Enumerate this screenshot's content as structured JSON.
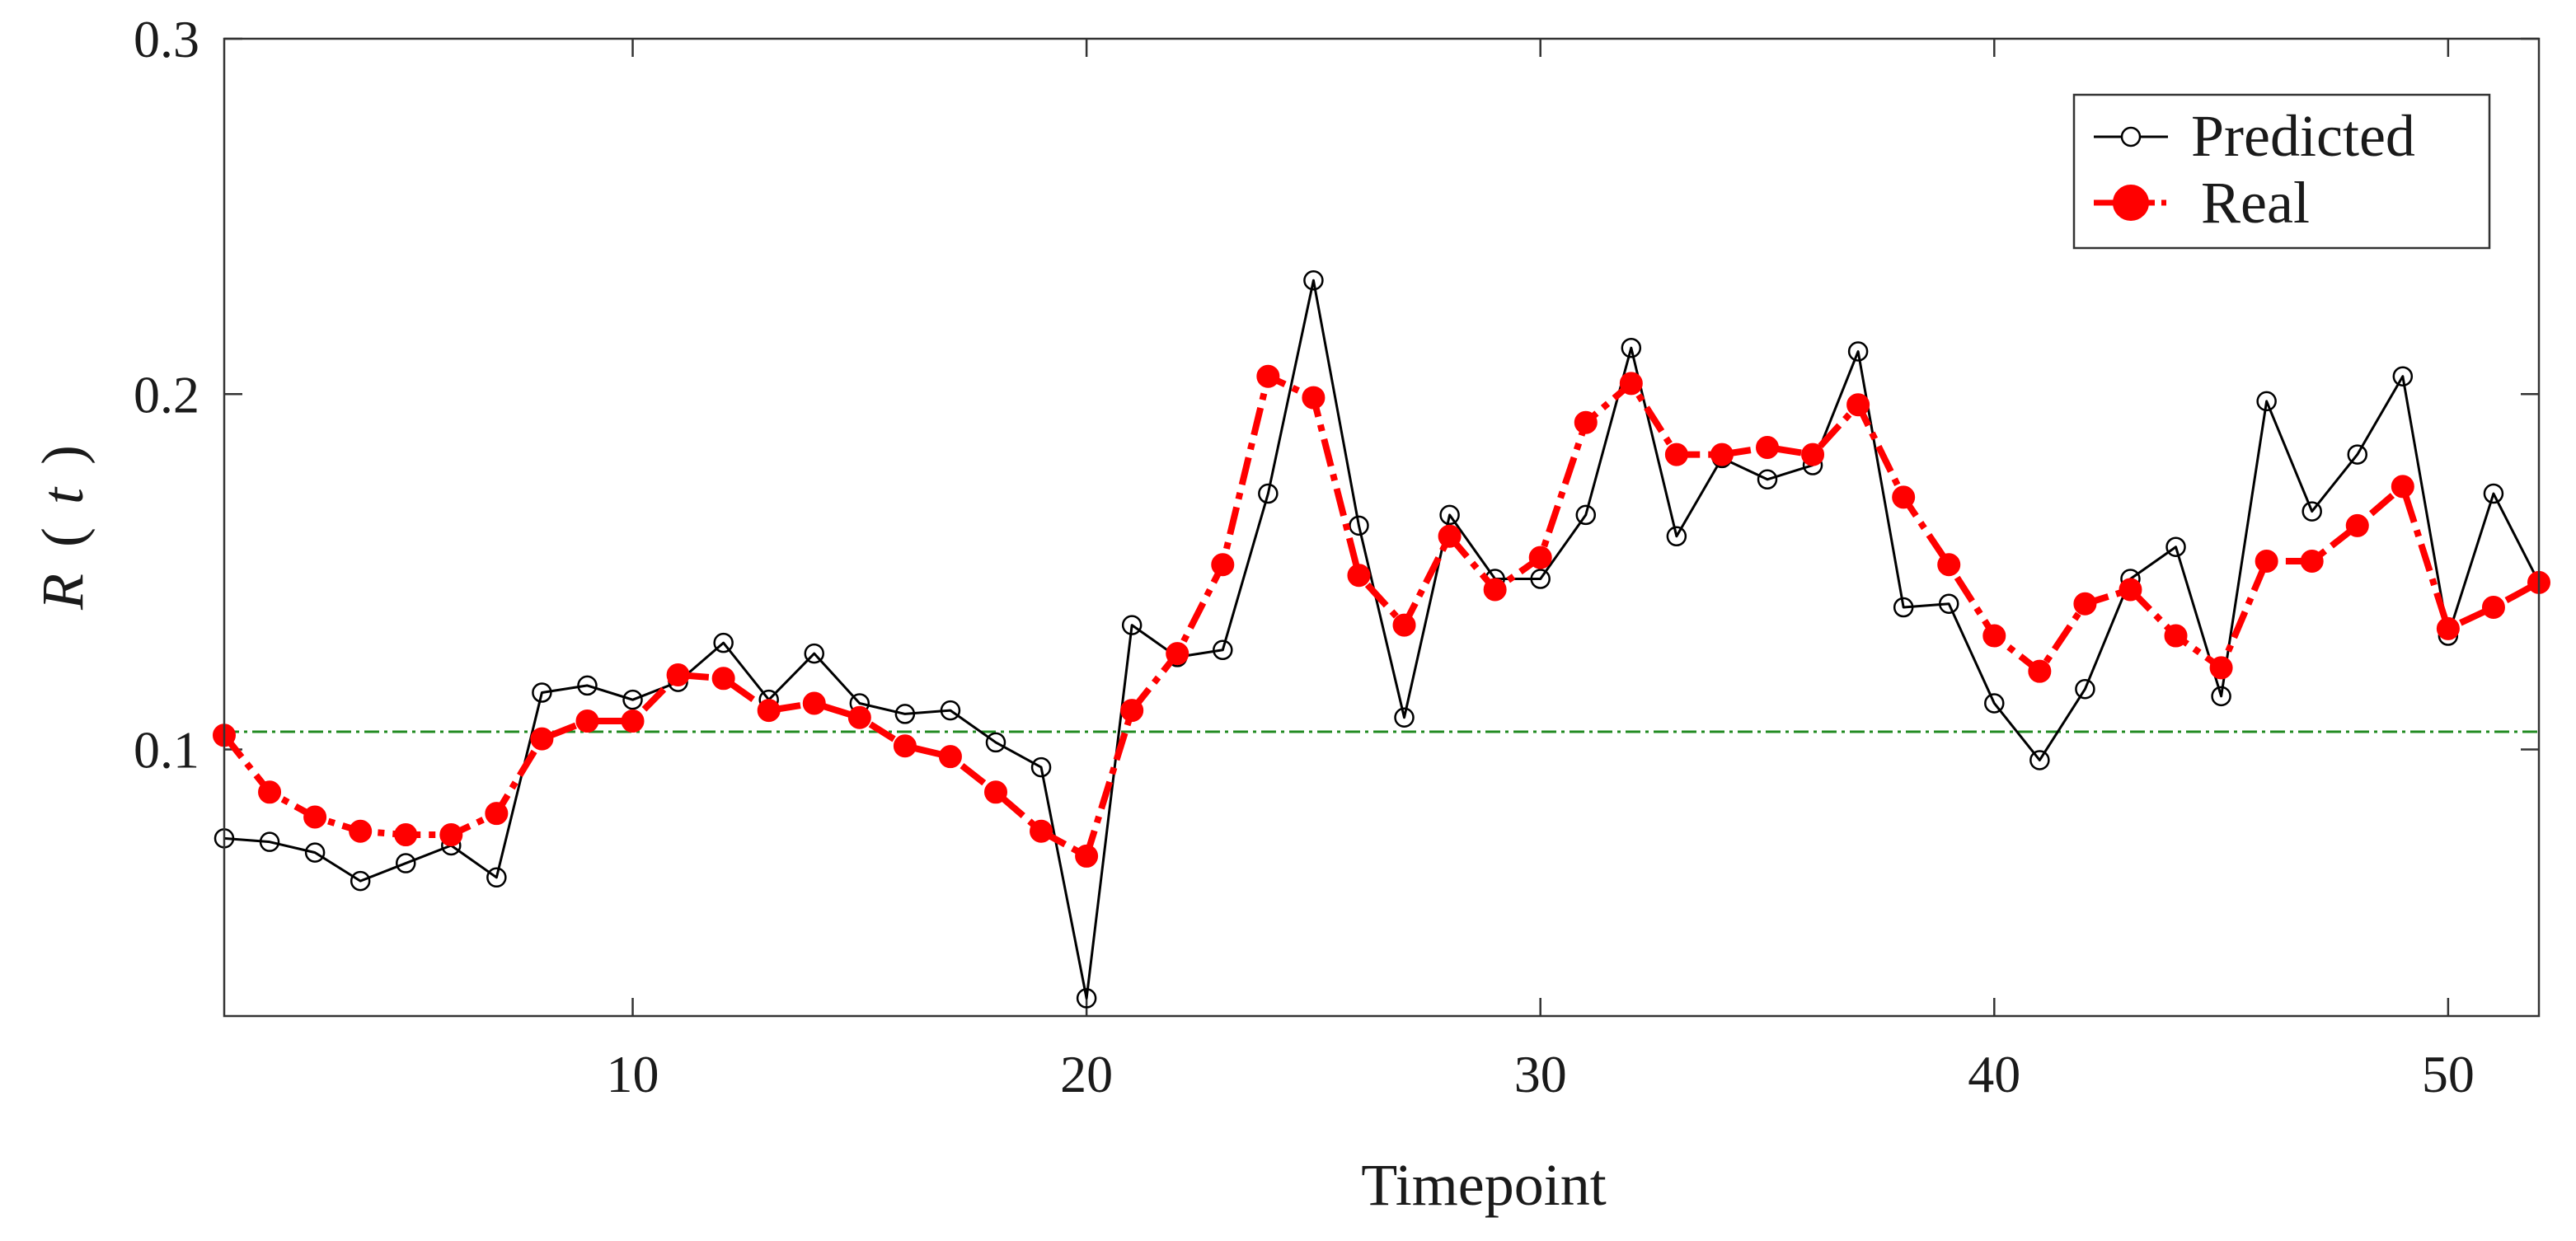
{
  "chart_data": {
    "type": "line",
    "xlabel": "Timepoint",
    "ylabel_main": "R",
    "ylabel_open": "(",
    "ylabel_var": "t",
    "ylabel_close": ")",
    "xlim": [
      1,
      52
    ],
    "ylim": [
      0.025,
      0.3
    ],
    "xticks": [
      10,
      20,
      30,
      40,
      50
    ],
    "yticks": [
      0.1,
      0.2,
      0.3
    ],
    "grid": false,
    "legend_position": "top-right",
    "reference_line": {
      "y": 0.105,
      "color": "#228B22",
      "style": "dash-dot"
    },
    "x": [
      1,
      2,
      3,
      4,
      5,
      6,
      7,
      8,
      9,
      10,
      11,
      12,
      13,
      14,
      15,
      16,
      17,
      18,
      19,
      20,
      21,
      22,
      23,
      24,
      25,
      26,
      27,
      28,
      29,
      30,
      31,
      32,
      33,
      34,
      35,
      36,
      37,
      38,
      39,
      40,
      41,
      42,
      43,
      44,
      45,
      46,
      47,
      48,
      49,
      50,
      51,
      52
    ],
    "series": [
      {
        "name": "Predicted",
        "color": "#000000",
        "marker": "open-circle",
        "line": "solid",
        "values": [
          0.075,
          0.074,
          0.071,
          0.063,
          0.068,
          0.073,
          0.064,
          0.116,
          0.118,
          0.114,
          0.119,
          0.13,
          0.114,
          0.127,
          0.113,
          0.11,
          0.111,
          0.102,
          0.095,
          0.03,
          0.135,
          0.126,
          0.128,
          0.172,
          0.232,
          0.163,
          0.109,
          0.166,
          0.148,
          0.148,
          0.166,
          0.213,
          0.16,
          0.182,
          0.176,
          0.18,
          0.212,
          0.14,
          0.141,
          0.113,
          0.097,
          0.117,
          0.148,
          0.157,
          0.115,
          0.198,
          0.167,
          0.183,
          0.205,
          0.132,
          0.172,
          0.147
        ]
      },
      {
        "name": "Real",
        "color": "#ff0000",
        "marker": "filled-circle",
        "line": "dash-dot",
        "values": [
          0.104,
          0.088,
          0.081,
          0.077,
          0.076,
          0.076,
          0.082,
          0.103,
          0.108,
          0.108,
          0.121,
          0.12,
          0.111,
          0.113,
          0.109,
          0.101,
          0.098,
          0.088,
          0.077,
          0.07,
          0.111,
          0.127,
          0.152,
          0.205,
          0.199,
          0.149,
          0.135,
          0.16,
          0.145,
          0.154,
          0.192,
          0.203,
          0.183,
          0.183,
          0.185,
          0.183,
          0.197,
          0.171,
          0.152,
          0.132,
          0.122,
          0.141,
          0.145,
          0.132,
          0.123,
          0.153,
          0.153,
          0.163,
          0.174,
          0.134,
          0.14,
          0.147
        ]
      }
    ]
  }
}
